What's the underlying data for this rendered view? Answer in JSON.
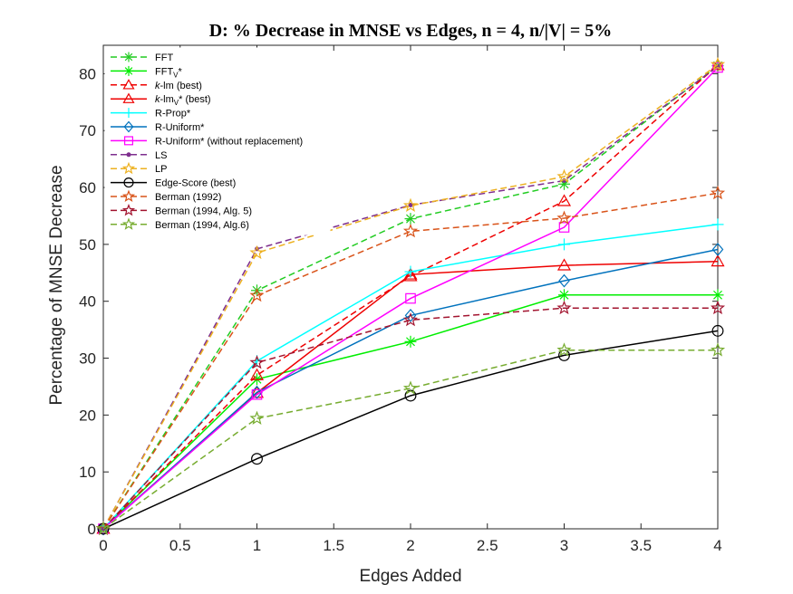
{
  "chart_data": {
    "type": "line",
    "title": "D: % Decrease in MNSE vs Edges, n = 4, n/|V| = 5%",
    "xlabel": "Edges Added",
    "ylabel": "Percentage of MNSE Decrease",
    "xlim": [
      0,
      4
    ],
    "ylim": [
      0,
      85
    ],
    "xticks": [
      "0",
      "0.5",
      "1",
      "1.5",
      "2",
      "2.5",
      "3",
      "3.5",
      "4"
    ],
    "xtick_values": [
      0,
      0.5,
      1,
      1.5,
      2,
      2.5,
      3,
      3.5,
      4
    ],
    "yticks": [
      "0",
      "10",
      "20",
      "30",
      "40",
      "50",
      "60",
      "70",
      "80"
    ],
    "ytick_values": [
      0,
      10,
      20,
      30,
      40,
      50,
      60,
      70,
      80
    ],
    "grid": false,
    "legend_position": "top-left",
    "x": [
      0,
      1,
      2,
      3,
      4
    ],
    "series": [
      {
        "name": "FFT",
        "label": [
          "FFT",
          "",
          ""
        ],
        "color": "#22cc22",
        "dash": "dashed",
        "marker": "asterisk",
        "values": [
          0,
          41.9,
          54.5,
          60.6,
          81.4
        ]
      },
      {
        "name": "FFTV*",
        "label": [
          "FFT",
          "V",
          "*"
        ],
        "color": "#00ee00",
        "dash": "solid",
        "marker": "asterisk",
        "values": [
          0,
          26.3,
          32.9,
          41.1,
          41.1
        ]
      },
      {
        "name": "k-lm (best)",
        "label": [
          "k",
          "-lm (best)",
          ""
        ],
        "italic_first": true,
        "color": "#ee0000",
        "dash": "dashed",
        "marker": "triangle",
        "values": [
          0,
          27.0,
          44.4,
          57.6,
          81.5
        ]
      },
      {
        "name": "k-lmV* (best)",
        "label": [
          "k",
          "-lm",
          "V",
          "* (best)"
        ],
        "italic_first": true,
        "color": "#ee0000",
        "dash": "solid",
        "marker": "triangle",
        "values": [
          0,
          23.9,
          44.7,
          46.3,
          47.0
        ]
      },
      {
        "name": "R-Prop*",
        "label": [
          "R-Prop*",
          "",
          ""
        ],
        "color": "#00ffff",
        "dash": "solid",
        "marker": "plus",
        "values": [
          0,
          29.5,
          45.2,
          50.0,
          53.5
        ]
      },
      {
        "name": "R-Uniform*",
        "label": [
          "R-Uniform*",
          "",
          ""
        ],
        "color": "#0072bd",
        "dash": "solid",
        "marker": "diamond",
        "values": [
          0,
          24.0,
          37.5,
          43.6,
          49.1
        ]
      },
      {
        "name": "R-Uniform* (without replacement)",
        "label": [
          "R-Uniform* (without replacement)",
          "",
          ""
        ],
        "color": "#ff00ff",
        "dash": "solid",
        "marker": "square",
        "values": [
          0,
          23.6,
          40.5,
          53.0,
          81.1
        ]
      },
      {
        "name": "LS",
        "label": [
          "LS",
          "",
          ""
        ],
        "color": "#7e2f8e",
        "dash": "dashed",
        "marker": "dot",
        "values": [
          0,
          49.2,
          56.9,
          61.2,
          81.3
        ]
      },
      {
        "name": "LP",
        "label": [
          "LP",
          "",
          ""
        ],
        "color": "#edb120",
        "dash": "dashed",
        "marker": "star",
        "values": [
          0,
          48.5,
          56.8,
          61.9,
          81.6
        ]
      },
      {
        "name": "Edge-Score (best)",
        "label": [
          "Edge-Score (best)",
          "",
          ""
        ],
        "color": "#000000",
        "dash": "solid",
        "marker": "circle",
        "values": [
          0,
          12.3,
          23.4,
          30.5,
          34.8
        ]
      },
      {
        "name": "Berman (1992)",
        "label": [
          "Berman (1992)",
          "",
          ""
        ],
        "color": "#d95319",
        "dash": "dashed",
        "marker": "star",
        "values": [
          0,
          41.0,
          52.3,
          54.6,
          59.0
        ]
      },
      {
        "name": "Berman (1994, Alg. 5)",
        "label": [
          "Berman (1994, Alg. 5)",
          "",
          ""
        ],
        "color": "#a2142f",
        "dash": "dashed",
        "marker": "star",
        "values": [
          0,
          29.2,
          36.7,
          38.8,
          38.8
        ]
      },
      {
        "name": "Berman (1994, Alg.6)",
        "label": [
          "Berman (1994, Alg.6)",
          "",
          ""
        ],
        "color": "#77ac30",
        "dash": "dashed",
        "marker": "star",
        "values": [
          0,
          19.4,
          24.7,
          31.4,
          31.4
        ]
      }
    ]
  }
}
